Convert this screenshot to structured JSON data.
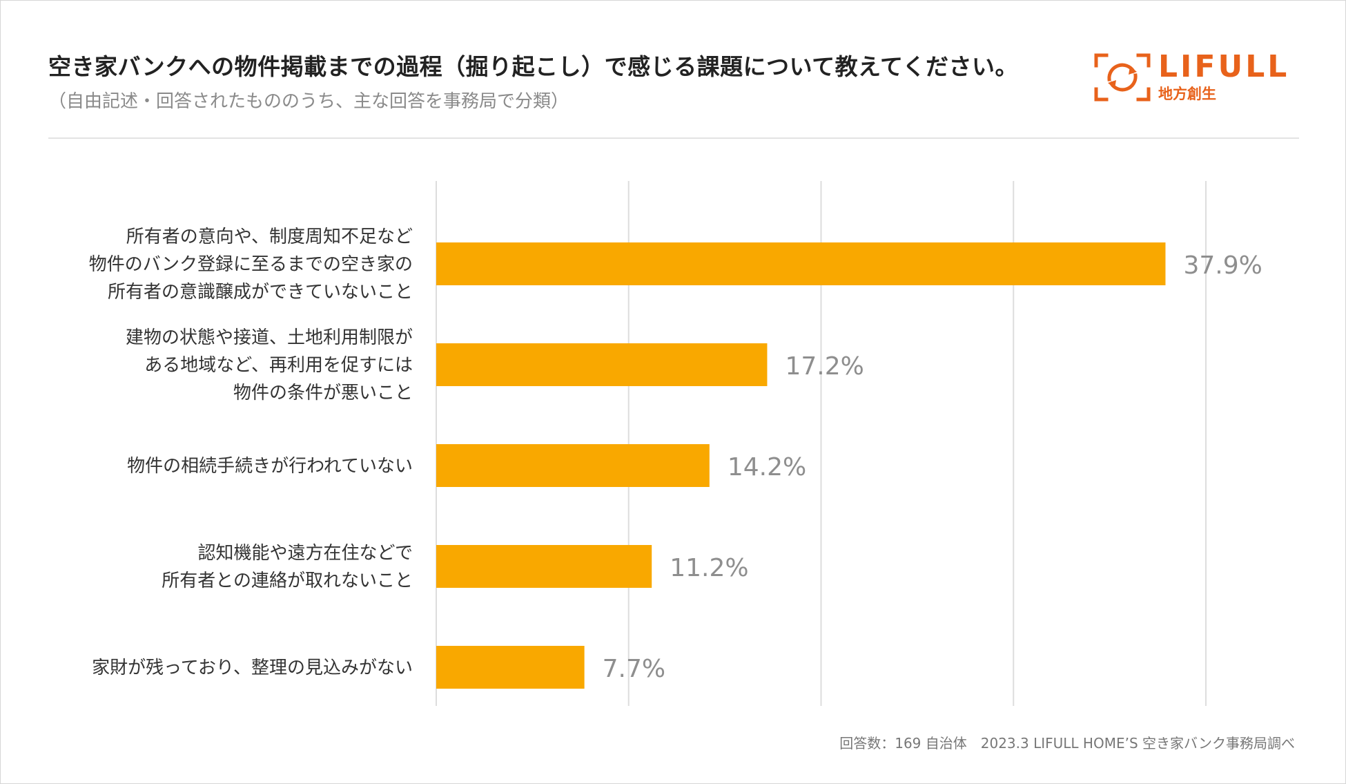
{
  "title": "空き家バンクへの物件掲載までの過程（掘り起こし）で感じる課題について教えてください。",
  "subtitle": "（自由記述・回答されたもののうち、主な回答を事務局で分類）",
  "logo": {
    "brand": "LIFULL",
    "sub": "地方創生",
    "color": "#E8621B"
  },
  "footer": "回答数：169 自治体　2023.3 LIFULL HOME’S 空き家バンク事務局調べ",
  "colors": {
    "bar": "#F9A800",
    "grid": "#dddddd",
    "value": "#8e8e8e",
    "label": "#333333"
  },
  "chart_data": {
    "type": "bar",
    "orientation": "horizontal",
    "title": "空き家バンクへの物件掲載までの過程（掘り起こし）で感じる課題について教えてください。",
    "xlim": [
      0,
      40
    ],
    "grid": true,
    "categories": [
      [
        "所有者の意向や、制度周知不足など",
        "物件のバンク登録に至るまでの空き家の",
        "所有者の意識醸成ができていないこと"
      ],
      [
        "建物の状態や接道、土地利用制限が",
        "ある地域など、再利用を促すには",
        "物件の条件が悪いこと"
      ],
      [
        "物件の相続手続きが行われていない"
      ],
      [
        "認知機能や遠方在住などで",
        "所有者との連絡が取れないこと"
      ],
      [
        "家財が残っており、整理の見込みがない"
      ]
    ],
    "values": [
      37.9,
      17.2,
      14.2,
      11.2,
      7.7
    ],
    "value_labels": [
      "37.9%",
      "17.2%",
      "14.2%",
      "11.2%",
      "7.7%"
    ]
  }
}
